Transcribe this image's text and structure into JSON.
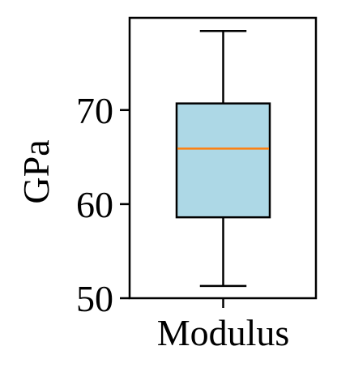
{
  "chart_data": {
    "type": "box",
    "ylabel": "GPa",
    "categories": [
      "Modulus"
    ],
    "yticks": [
      50,
      60,
      70
    ],
    "ylim": [
      50,
      79.8
    ],
    "boxes": [
      {
        "name": "Modulus",
        "whisker_low": 51.3,
        "q1": 58.6,
        "median": 65.9,
        "q3": 70.7,
        "whisker_high": 78.4
      }
    ],
    "box_color": "#add8e6",
    "median_color": "#ff7f0e",
    "grid": false
  }
}
